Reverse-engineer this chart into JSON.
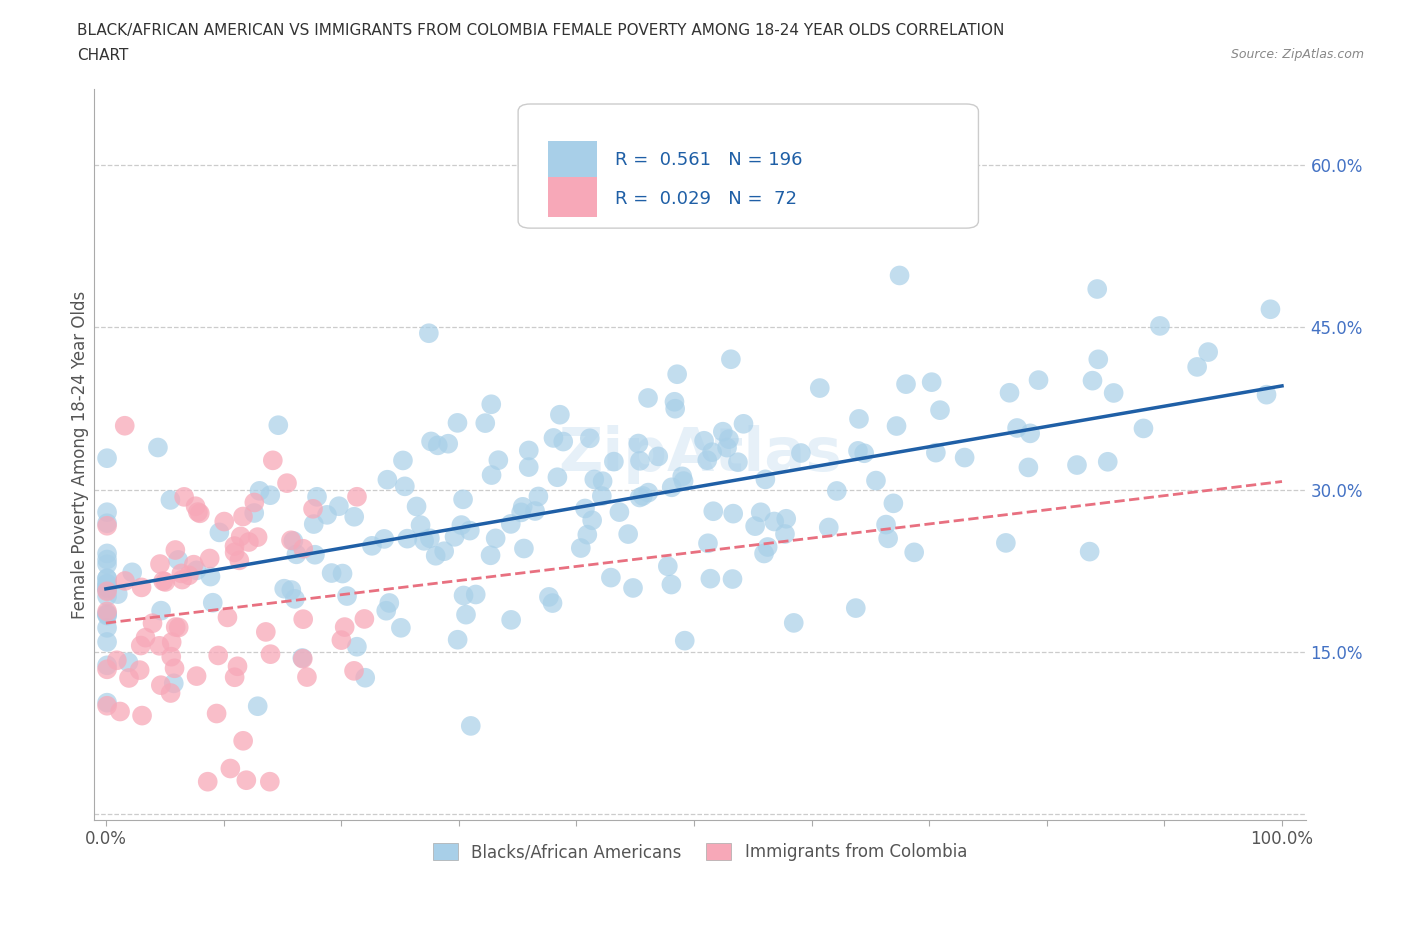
{
  "title_line1": "BLACK/AFRICAN AMERICAN VS IMMIGRANTS FROM COLOMBIA FEMALE POVERTY AMONG 18-24 YEAR OLDS CORRELATION",
  "title_line2": "CHART",
  "source": "Source: ZipAtlas.com",
  "ylabel": "Female Poverty Among 18-24 Year Olds",
  "blue_color": "#a8cfe8",
  "pink_color": "#f7a8b8",
  "blue_line_color": "#1f5fa6",
  "pink_line_color": "#e87080",
  "watermark": "ZipAtlas",
  "legend_label_blue": "Blacks/African Americans",
  "legend_label_pink": "Immigrants from Colombia",
  "legend_blue_text": "R =  0.561   N = 196",
  "legend_pink_text": "R =  0.029   N =  72"
}
